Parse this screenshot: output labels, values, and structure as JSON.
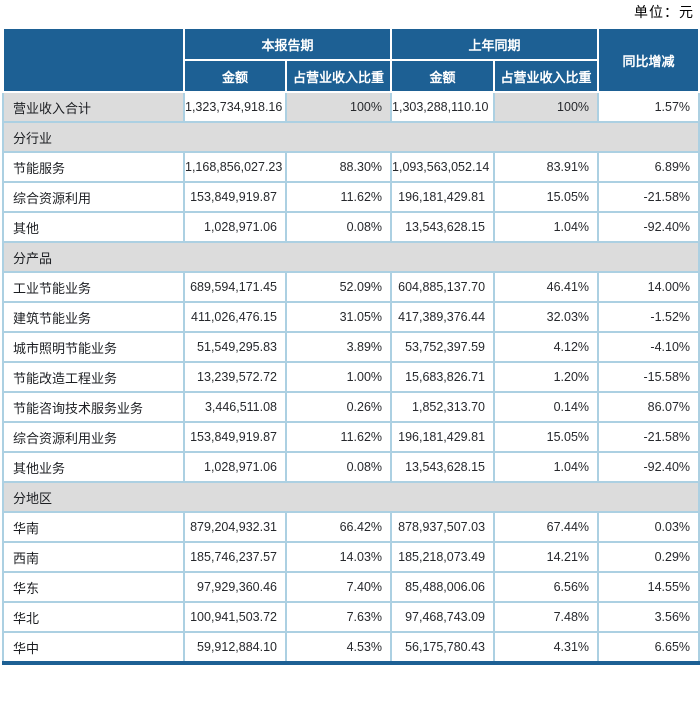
{
  "unit_label": "单位：元",
  "colors": {
    "header_blue": "#1d6094",
    "cell_border_light_blue": "#acd0e2",
    "section_gray": "#dcdcdc",
    "bottom_bar_blue": "#1d6094"
  },
  "table": {
    "header": {
      "current_period": "本报告期",
      "prior_period": "上年同期",
      "yoy_change": "同比增减",
      "amount": "金额",
      "pct_of_revenue": "占营业收入比重"
    },
    "rows": [
      {
        "type": "total",
        "label": "营业收入合计",
        "cur_amount": "1,323,734,918.16",
        "cur_pct": "100%",
        "prior_amount": "1,303,288,110.10",
        "prior_pct": "100%",
        "yoy": "1.57%"
      },
      {
        "type": "section",
        "label": "分行业"
      },
      {
        "type": "data",
        "label": "节能服务",
        "cur_amount": "1,168,856,027.23",
        "cur_pct": "88.30%",
        "prior_amount": "1,093,563,052.14",
        "prior_pct": "83.91%",
        "yoy": "6.89%"
      },
      {
        "type": "data",
        "label": "综合资源利用",
        "cur_amount": "153,849,919.87",
        "cur_pct": "11.62%",
        "prior_amount": "196,181,429.81",
        "prior_pct": "15.05%",
        "yoy": "-21.58%"
      },
      {
        "type": "data",
        "label": "其他",
        "cur_amount": "1,028,971.06",
        "cur_pct": "0.08%",
        "prior_amount": "13,543,628.15",
        "prior_pct": "1.04%",
        "yoy": "-92.40%"
      },
      {
        "type": "section",
        "label": "分产品"
      },
      {
        "type": "data",
        "label": "工业节能业务",
        "cur_amount": "689,594,171.45",
        "cur_pct": "52.09%",
        "prior_amount": "604,885,137.70",
        "prior_pct": "46.41%",
        "yoy": "14.00%"
      },
      {
        "type": "data",
        "label": "建筑节能业务",
        "cur_amount": "411,026,476.15",
        "cur_pct": "31.05%",
        "prior_amount": "417,389,376.44",
        "prior_pct": "32.03%",
        "yoy": "-1.52%"
      },
      {
        "type": "data",
        "label": "城市照明节能业务",
        "cur_amount": "51,549,295.83",
        "cur_pct": "3.89%",
        "prior_amount": "53,752,397.59",
        "prior_pct": "4.12%",
        "yoy": "-4.10%"
      },
      {
        "type": "data",
        "label": "节能改造工程业务",
        "cur_amount": "13,239,572.72",
        "cur_pct": "1.00%",
        "prior_amount": "15,683,826.71",
        "prior_pct": "1.20%",
        "yoy": "-15.58%"
      },
      {
        "type": "data",
        "label": "节能咨询技术服务业务",
        "cur_amount": "3,446,511.08",
        "cur_pct": "0.26%",
        "prior_amount": "1,852,313.70",
        "prior_pct": "0.14%",
        "yoy": "86.07%"
      },
      {
        "type": "data",
        "label": "综合资源利用业务",
        "cur_amount": "153,849,919.87",
        "cur_pct": "11.62%",
        "prior_amount": "196,181,429.81",
        "prior_pct": "15.05%",
        "yoy": "-21.58%"
      },
      {
        "type": "data",
        "label": "其他业务",
        "cur_amount": "1,028,971.06",
        "cur_pct": "0.08%",
        "prior_amount": "13,543,628.15",
        "prior_pct": "1.04%",
        "yoy": "-92.40%"
      },
      {
        "type": "section",
        "label": "分地区"
      },
      {
        "type": "data",
        "label": "华南",
        "cur_amount": "879,204,932.31",
        "cur_pct": "66.42%",
        "prior_amount": "878,937,507.03",
        "prior_pct": "67.44%",
        "yoy": "0.03%"
      },
      {
        "type": "data",
        "label": "西南",
        "cur_amount": "185,746,237.57",
        "cur_pct": "14.03%",
        "prior_amount": "185,218,073.49",
        "prior_pct": "14.21%",
        "yoy": "0.29%"
      },
      {
        "type": "data",
        "label": "华东",
        "cur_amount": "97,929,360.46",
        "cur_pct": "7.40%",
        "prior_amount": "85,488,006.06",
        "prior_pct": "6.56%",
        "yoy": "14.55%"
      },
      {
        "type": "data",
        "label": "华北",
        "cur_amount": "100,941,503.72",
        "cur_pct": "7.63%",
        "prior_amount": "97,468,743.09",
        "prior_pct": "7.48%",
        "yoy": "3.56%"
      },
      {
        "type": "data",
        "label": "华中",
        "cur_amount": "59,912,884.10",
        "cur_pct": "4.53%",
        "prior_amount": "56,175,780.43",
        "prior_pct": "4.31%",
        "yoy": "6.65%"
      }
    ]
  }
}
